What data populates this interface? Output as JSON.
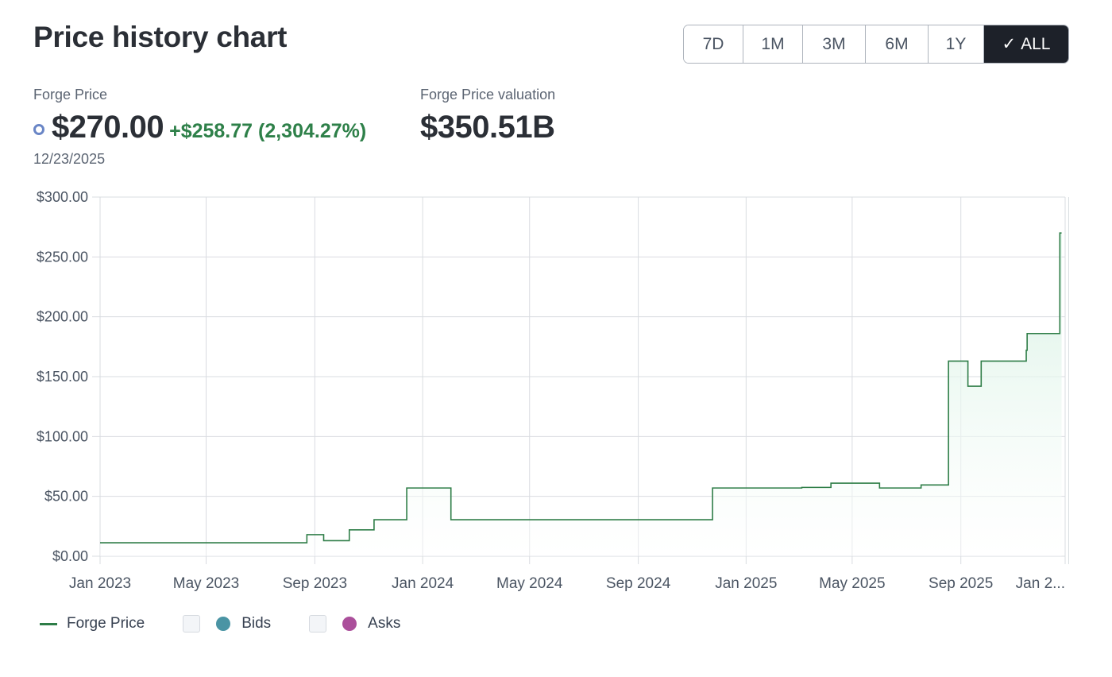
{
  "header": {
    "title": "Price history chart"
  },
  "range_buttons": [
    {
      "label": "7D",
      "active": false
    },
    {
      "label": "1M",
      "active": false
    },
    {
      "label": "3M",
      "active": false
    },
    {
      "label": "6M",
      "active": false
    },
    {
      "label": "1Y",
      "active": false
    },
    {
      "label": "ALL",
      "active": true
    }
  ],
  "stats": {
    "price_label": "Forge Price",
    "price_value": "$270.00",
    "price_change": "+$258.77 (2,304.27%)",
    "price_date": "12/23/2025",
    "valuation_label": "Forge Price valuation",
    "valuation_value": "$350.51B"
  },
  "legend": {
    "price_label": "Forge Price",
    "bids_label": "Bids",
    "asks_label": "Asks"
  },
  "colors": {
    "line": "#2e7d47",
    "fill": "#e3f5ec",
    "bids": "#4a94a4",
    "asks": "#ab4f9b",
    "accent_active": "#1d2129",
    "change": "#2e8049"
  },
  "chart_data": {
    "type": "line",
    "title": "",
    "xlabel": "",
    "ylabel": "",
    "ylim": [
      0,
      300
    ],
    "xlim": [
      "2023-01-01",
      "2025-12-28"
    ],
    "y_ticks": [
      "$0.00",
      "$50.00",
      "$100.00",
      "$150.00",
      "$200.00",
      "$250.00",
      "$300.00"
    ],
    "x_ticks": [
      "Jan 2023",
      "May 2023",
      "Sep 2023",
      "Jan 2024",
      "May 2024",
      "Sep 2024",
      "Jan 2025",
      "May 2025",
      "Sep 2025",
      "Jan 2..."
    ],
    "grid": true,
    "series": [
      {
        "name": "Forge Price",
        "step": true,
        "points": [
          [
            "2023-01-01",
            11.23
          ],
          [
            "2023-08-23",
            18
          ],
          [
            "2023-09-11",
            13
          ],
          [
            "2023-10-10",
            22
          ],
          [
            "2023-11-07",
            30.5
          ],
          [
            "2023-12-14",
            57
          ],
          [
            "2024-02-02",
            30.5
          ],
          [
            "2024-11-24",
            57
          ],
          [
            "2025-03-05",
            57.5
          ],
          [
            "2025-04-07",
            61
          ],
          [
            "2025-06-01",
            57
          ],
          [
            "2025-07-18",
            59.5
          ],
          [
            "2025-08-18",
            163
          ],
          [
            "2025-09-09",
            142
          ],
          [
            "2025-09-24",
            163
          ],
          [
            "2025-11-14",
            172
          ],
          [
            "2025-11-15",
            186
          ],
          [
            "2025-12-22",
            270
          ],
          [
            "2025-12-24",
            270
          ]
        ]
      }
    ]
  }
}
